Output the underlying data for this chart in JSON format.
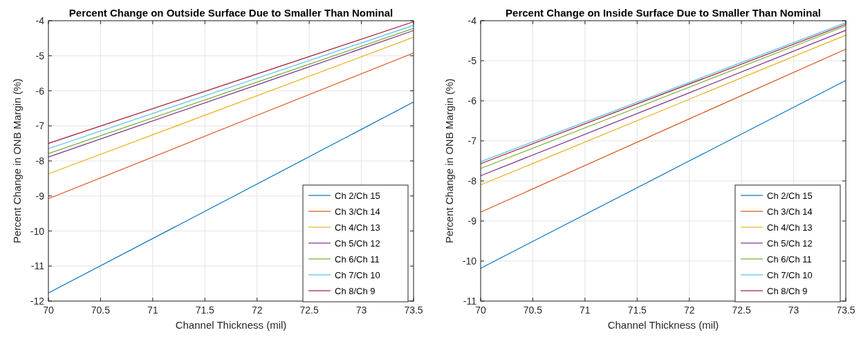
{
  "chart_data": [
    {
      "type": "line",
      "title": "Percent Change on Outside Surface Due to Smaller Than Nominal",
      "xlabel": "Channel Thickness (mil)",
      "ylabel": "Percent Change in ONB Margin (%)",
      "x": [
        70,
        72,
        73.5
      ],
      "xlim": [
        70,
        73.5
      ],
      "xticks": [
        70,
        70.5,
        71,
        71.5,
        72,
        72.5,
        73,
        73.5
      ],
      "ylim": [
        -12,
        -4
      ],
      "yticks": [
        -12,
        -11,
        -10,
        -9,
        -8,
        -7,
        -6,
        -5,
        -4
      ],
      "grid": true,
      "legend": "bottom right",
      "series": [
        {
          "name": "Ch 2/Ch 15",
          "color": "#0072bd",
          "values": [
            -11.77,
            -8.66,
            -6.32
          ]
        },
        {
          "name": "Ch 3/Ch 14",
          "color": "#d95319",
          "values": [
            -9.08,
            -6.7,
            -4.92
          ]
        },
        {
          "name": "Ch 4/Ch 13",
          "color": "#edb120",
          "values": [
            -8.37,
            -6.14,
            -4.47
          ]
        },
        {
          "name": "Ch 5/Ch 12",
          "color": "#7e2f8e",
          "values": [
            -7.89,
            -5.83,
            -4.28
          ]
        },
        {
          "name": "Ch 6/Ch 11",
          "color": "#77ac30",
          "values": [
            -7.79,
            -5.75,
            -4.22
          ]
        },
        {
          "name": "Ch 7/Ch 10",
          "color": "#4dbeee",
          "values": [
            -7.65,
            -5.64,
            -4.13
          ]
        },
        {
          "name": "Ch 8/Ch 9",
          "color": "#a2142f",
          "values": [
            -7.5,
            -5.52,
            -4.03
          ]
        }
      ]
    },
    {
      "type": "line",
      "title": "Percent Change on Inside Surface Due to Smaller Than Nominal",
      "xlabel": "Channel Thickness (mil)",
      "ylabel": "Percent Change in ONB Margin (%)",
      "x": [
        70,
        72,
        73.5
      ],
      "xlim": [
        70,
        73.5
      ],
      "xticks": [
        70,
        70.5,
        71,
        71.5,
        72,
        72.5,
        73,
        73.5
      ],
      "ylim": [
        -11,
        -4
      ],
      "yticks": [
        -11,
        -10,
        -9,
        -8,
        -7,
        -6,
        -5,
        -4
      ],
      "grid": true,
      "legend": "bottom right",
      "series": [
        {
          "name": "Ch 2/Ch 15",
          "color": "#0072bd",
          "values": [
            -10.18,
            -7.5,
            -5.49
          ]
        },
        {
          "name": "Ch 3/Ch 14",
          "color": "#d95319",
          "values": [
            -8.78,
            -6.45,
            -4.71
          ]
        },
        {
          "name": "Ch 4/Ch 13",
          "color": "#edb120",
          "values": [
            -8.1,
            -5.96,
            -4.36
          ]
        },
        {
          "name": "Ch 5/Ch 12",
          "color": "#7e2f8e",
          "values": [
            -7.87,
            -5.8,
            -4.24
          ]
        },
        {
          "name": "Ch 6/Ch 11",
          "color": "#77ac30",
          "values": [
            -7.69,
            -5.66,
            -4.13
          ]
        },
        {
          "name": "Ch 7/Ch 10",
          "color": "#4dbeee",
          "values": [
            -7.52,
            -5.54,
            -4.05
          ]
        },
        {
          "name": "Ch 8/Ch 9",
          "color": "#a2142f",
          "values": [
            -7.57,
            -5.58,
            -4.09
          ]
        }
      ]
    }
  ]
}
